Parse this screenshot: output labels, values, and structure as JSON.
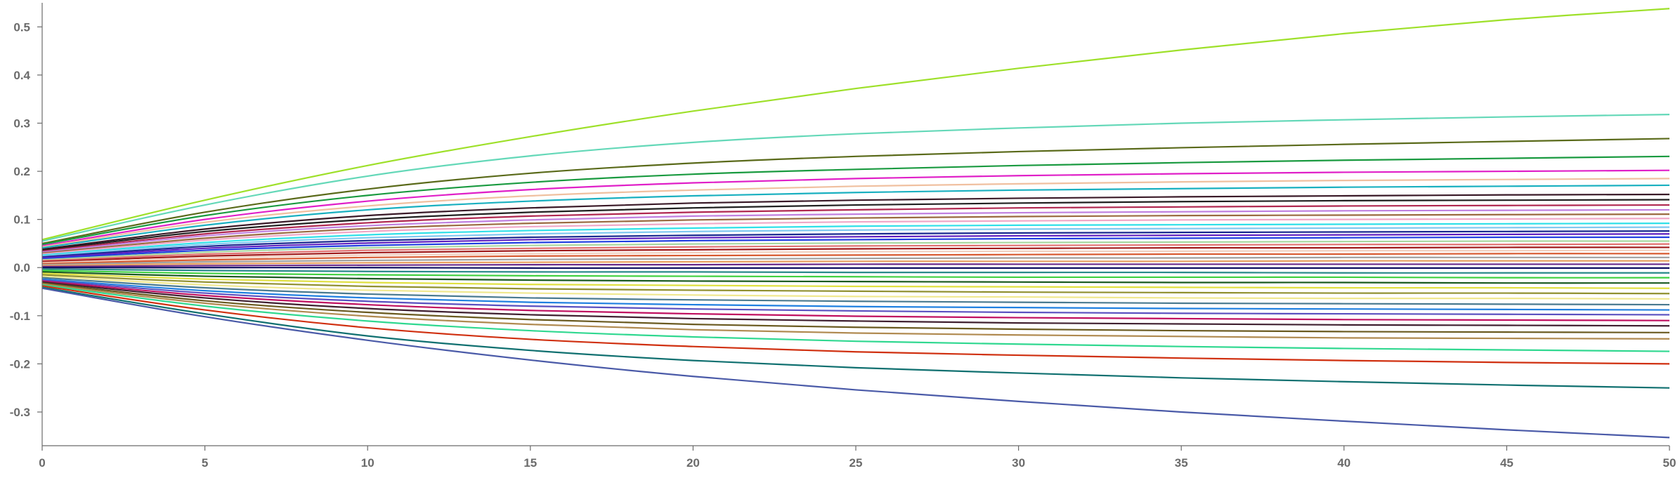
{
  "chart_data": {
    "type": "line",
    "title": "",
    "xlabel": "",
    "ylabel": "",
    "xlim": [
      0,
      50
    ],
    "ylim": [
      -0.37,
      0.55
    ],
    "x_ticks": [
      0,
      5,
      10,
      15,
      20,
      25,
      30,
      35,
      40,
      45,
      50
    ],
    "y_ticks": [
      -0.3,
      -0.2,
      -0.1,
      0.0,
      0.1,
      0.2,
      0.3,
      0.4,
      0.5
    ],
    "x_tick_labels": [
      "0",
      "5",
      "10",
      "15",
      "20",
      "25",
      "30",
      "35",
      "40",
      "45",
      "50"
    ],
    "y_tick_labels": [
      "-0.3",
      "-0.2",
      "-0.1",
      "0.0",
      "0.1",
      "0.2",
      "0.3",
      "0.4",
      "0.5"
    ],
    "grid": false,
    "legend": "none",
    "x": [
      0,
      5,
      10,
      15,
      20,
      25,
      30,
      35,
      40,
      45,
      50
    ],
    "series": [
      {
        "color": "#9ee02a",
        "values": [
          0.058,
          0.14,
          0.212,
          0.272,
          0.325,
          0.372,
          0.414,
          0.452,
          0.486,
          0.515,
          0.538
        ]
      },
      {
        "color": "#64d8b8",
        "values": [
          0.055,
          0.13,
          0.19,
          0.232,
          0.26,
          0.278,
          0.29,
          0.3,
          0.307,
          0.313,
          0.318
        ]
      },
      {
        "color": "#5a6a1a",
        "values": [
          0.05,
          0.115,
          0.163,
          0.196,
          0.217,
          0.231,
          0.241,
          0.249,
          0.256,
          0.262,
          0.268
        ]
      },
      {
        "color": "#1a9a40",
        "values": [
          0.048,
          0.108,
          0.15,
          0.177,
          0.194,
          0.204,
          0.212,
          0.218,
          0.223,
          0.227,
          0.231
        ]
      },
      {
        "color": "#e020c8",
        "values": [
          0.045,
          0.1,
          0.138,
          0.162,
          0.176,
          0.185,
          0.191,
          0.195,
          0.198,
          0.2,
          0.202
        ]
      },
      {
        "color": "#f0c0a0",
        "values": [
          0.043,
          0.094,
          0.128,
          0.149,
          0.161,
          0.169,
          0.174,
          0.178,
          0.181,
          0.183,
          0.185
        ]
      },
      {
        "color": "#1ab0c0",
        "values": [
          0.041,
          0.088,
          0.12,
          0.138,
          0.149,
          0.156,
          0.161,
          0.164,
          0.167,
          0.169,
          0.171
        ]
      },
      {
        "color": "#3a1a28",
        "values": [
          0.038,
          0.08,
          0.108,
          0.124,
          0.134,
          0.14,
          0.144,
          0.147,
          0.149,
          0.151,
          0.152
        ]
      },
      {
        "color": "#202020",
        "values": [
          0.036,
          0.075,
          0.1,
          0.115,
          0.124,
          0.13,
          0.134,
          0.137,
          0.139,
          0.14,
          0.141
        ]
      },
      {
        "color": "#b02850",
        "values": [
          0.034,
          0.07,
          0.093,
          0.107,
          0.115,
          0.12,
          0.124,
          0.126,
          0.128,
          0.129,
          0.13
        ]
      },
      {
        "color": "#c080e0",
        "values": [
          0.032,
          0.066,
          0.087,
          0.099,
          0.107,
          0.111,
          0.114,
          0.116,
          0.118,
          0.119,
          0.12
        ]
      },
      {
        "color": "#9a6a40",
        "values": [
          0.03,
          0.061,
          0.081,
          0.092,
          0.099,
          0.103,
          0.106,
          0.108,
          0.109,
          0.11,
          0.111
        ]
      },
      {
        "color": "#f0a8c8",
        "values": [
          0.028,
          0.057,
          0.075,
          0.085,
          0.091,
          0.095,
          0.097,
          0.099,
          0.1,
          0.101,
          0.102
        ]
      },
      {
        "color": "#30e0e8",
        "values": [
          0.026,
          0.052,
          0.068,
          0.077,
          0.082,
          0.086,
          0.088,
          0.089,
          0.09,
          0.091,
          0.092
        ]
      },
      {
        "color": "#80c8f0",
        "values": [
          0.024,
          0.048,
          0.062,
          0.07,
          0.075,
          0.078,
          0.08,
          0.081,
          0.082,
          0.083,
          0.084
        ]
      },
      {
        "color": "#1a2a90",
        "values": [
          0.022,
          0.044,
          0.056,
          0.063,
          0.067,
          0.07,
          0.072,
          0.073,
          0.074,
          0.075,
          0.076
        ]
      },
      {
        "color": "#6020c0",
        "values": [
          0.02,
          0.04,
          0.051,
          0.058,
          0.062,
          0.064,
          0.066,
          0.067,
          0.068,
          0.069,
          0.07
        ]
      },
      {
        "color": "#2040e0",
        "values": [
          0.018,
          0.036,
          0.046,
          0.052,
          0.056,
          0.058,
          0.06,
          0.061,
          0.062,
          0.063,
          0.063
        ]
      },
      {
        "color": "#a8d8a0",
        "values": [
          0.016,
          0.032,
          0.041,
          0.046,
          0.049,
          0.051,
          0.052,
          0.053,
          0.054,
          0.055,
          0.055
        ]
      },
      {
        "color": "#e07070",
        "values": [
          0.014,
          0.028,
          0.036,
          0.04,
          0.043,
          0.045,
          0.046,
          0.047,
          0.048,
          0.048,
          0.049
        ]
      },
      {
        "color": "#a01a1a",
        "values": [
          0.012,
          0.024,
          0.031,
          0.035,
          0.037,
          0.039,
          0.04,
          0.041,
          0.041,
          0.042,
          0.042
        ]
      },
      {
        "color": "#f0d0c0",
        "values": [
          0.01,
          0.02,
          0.026,
          0.029,
          0.031,
          0.033,
          0.034,
          0.034,
          0.035,
          0.035,
          0.036
        ]
      },
      {
        "color": "#d85a30",
        "values": [
          0.008,
          0.016,
          0.021,
          0.024,
          0.025,
          0.026,
          0.027,
          0.028,
          0.028,
          0.029,
          0.029
        ]
      },
      {
        "color": "#a0a0a0",
        "values": [
          0.006,
          0.012,
          0.015,
          0.017,
          0.018,
          0.019,
          0.02,
          0.02,
          0.021,
          0.021,
          0.021
        ]
      },
      {
        "color": "#e8a060",
        "values": [
          0.004,
          0.008,
          0.01,
          0.011,
          0.012,
          0.013,
          0.013,
          0.013,
          0.014,
          0.014,
          0.014
        ]
      },
      {
        "color": "#6a2a8a",
        "values": [
          0.002,
          0.004,
          0.005,
          0.006,
          0.006,
          0.007,
          0.007,
          0.007,
          0.007,
          0.007,
          0.007
        ]
      },
      {
        "color": "#101060",
        "values": [
          0.0,
          0.0,
          0.0,
          -0.001,
          -0.001,
          -0.001,
          -0.001,
          -0.001,
          -0.001,
          -0.001,
          -0.001
        ]
      },
      {
        "color": "#2a8a8a",
        "values": [
          -0.003,
          -0.006,
          -0.008,
          -0.009,
          -0.009,
          -0.01,
          -0.01,
          -0.01,
          -0.011,
          -0.011,
          -0.011
        ]
      },
      {
        "color": "#40d040",
        "values": [
          -0.006,
          -0.012,
          -0.015,
          -0.017,
          -0.018,
          -0.019,
          -0.02,
          -0.02,
          -0.02,
          -0.021,
          -0.021
        ]
      },
      {
        "color": "#1a5a20",
        "values": [
          -0.009,
          -0.018,
          -0.023,
          -0.026,
          -0.028,
          -0.029,
          -0.03,
          -0.031,
          -0.031,
          -0.032,
          -0.032
        ]
      },
      {
        "color": "#e0e040",
        "values": [
          -0.012,
          -0.024,
          -0.031,
          -0.035,
          -0.037,
          -0.039,
          -0.04,
          -0.041,
          -0.042,
          -0.042,
          -0.043
        ]
      },
      {
        "color": "#909030",
        "values": [
          -0.015,
          -0.03,
          -0.039,
          -0.044,
          -0.047,
          -0.049,
          -0.051,
          -0.052,
          -0.053,
          -0.053,
          -0.054
        ]
      },
      {
        "color": "#f0e890",
        "values": [
          -0.018,
          -0.036,
          -0.047,
          -0.053,
          -0.057,
          -0.06,
          -0.061,
          -0.063,
          -0.064,
          -0.064,
          -0.065
        ]
      },
      {
        "color": "#4a7a90",
        "values": [
          -0.021,
          -0.042,
          -0.055,
          -0.063,
          -0.067,
          -0.07,
          -0.072,
          -0.074,
          -0.075,
          -0.076,
          -0.077
        ]
      },
      {
        "color": "#2080e0",
        "values": [
          -0.024,
          -0.048,
          -0.063,
          -0.072,
          -0.077,
          -0.081,
          -0.083,
          -0.085,
          -0.086,
          -0.087,
          -0.088
        ]
      },
      {
        "color": "#5a50c0",
        "values": [
          -0.026,
          -0.053,
          -0.07,
          -0.08,
          -0.086,
          -0.09,
          -0.093,
          -0.095,
          -0.096,
          -0.097,
          -0.098
        ]
      },
      {
        "color": "#c01060",
        "values": [
          -0.028,
          -0.058,
          -0.077,
          -0.089,
          -0.096,
          -0.101,
          -0.104,
          -0.106,
          -0.108,
          -0.109,
          -0.11
        ]
      },
      {
        "color": "#402030",
        "values": [
          -0.03,
          -0.063,
          -0.085,
          -0.098,
          -0.106,
          -0.111,
          -0.115,
          -0.117,
          -0.119,
          -0.12,
          -0.121
        ]
      },
      {
        "color": "#6a5a20",
        "values": [
          -0.032,
          -0.069,
          -0.093,
          -0.108,
          -0.118,
          -0.124,
          -0.128,
          -0.131,
          -0.133,
          -0.134,
          -0.135
        ]
      },
      {
        "color": "#b08a50",
        "values": [
          -0.034,
          -0.074,
          -0.101,
          -0.118,
          -0.129,
          -0.136,
          -0.14,
          -0.143,
          -0.146,
          -0.147,
          -0.148
        ]
      },
      {
        "color": "#30d890",
        "values": [
          -0.036,
          -0.08,
          -0.111,
          -0.131,
          -0.144,
          -0.153,
          -0.159,
          -0.164,
          -0.168,
          -0.171,
          -0.174
        ]
      },
      {
        "color": "#d03010",
        "values": [
          -0.038,
          -0.088,
          -0.125,
          -0.149,
          -0.164,
          -0.175,
          -0.182,
          -0.188,
          -0.193,
          -0.197,
          -0.2
        ]
      },
      {
        "color": "#107070",
        "values": [
          -0.041,
          -0.096,
          -0.142,
          -0.172,
          -0.193,
          -0.208,
          -0.219,
          -0.229,
          -0.237,
          -0.244,
          -0.25
        ]
      },
      {
        "color": "#4a5aa8",
        "values": [
          -0.043,
          -0.102,
          -0.151,
          -0.192,
          -0.226,
          -0.254,
          -0.278,
          -0.3,
          -0.319,
          -0.337,
          -0.353
        ]
      }
    ]
  }
}
